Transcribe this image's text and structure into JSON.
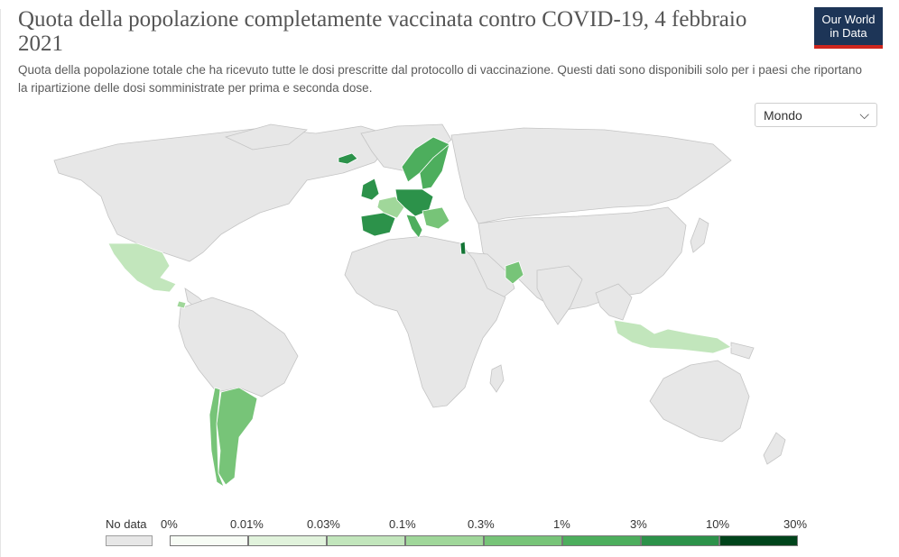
{
  "header": {
    "title": "Quota della popolazione completamente vaccinata contro COVID-19, 4 febbraio 2021",
    "subtitle": "Quota della popolazione totale che ha ricevuto tutte le dosi prescritte dal protocollo di vaccinazione. Questi dati sono disponibili solo per i paesi che riportano la ripartizione delle dosi somministrate per prima e seconda dose.",
    "logo_line1": "Our World",
    "logo_line2": "in Data"
  },
  "controls": {
    "region_select": "Mondo",
    "chevron": "⌵"
  },
  "legend": {
    "no_data_label": "No data",
    "tick_labels": [
      "0%",
      "0.01%",
      "0.03%",
      "0.1%",
      "0.3%",
      "1%",
      "3%",
      "10%",
      "30%"
    ],
    "bin_colors": [
      "#f7fcf5",
      "#e1f3dc",
      "#c2e6bc",
      "#a0d79a",
      "#77c478",
      "#4dae5d",
      "#2c924a",
      "#137535",
      "#00441b"
    ]
  },
  "colors": {
    "no_data": "#e7e7e7",
    "border": "#ffffff",
    "land_outline": "#bdbdbd",
    "accent_red": "#ce261e",
    "logo_bg": "#1d3557"
  }
}
